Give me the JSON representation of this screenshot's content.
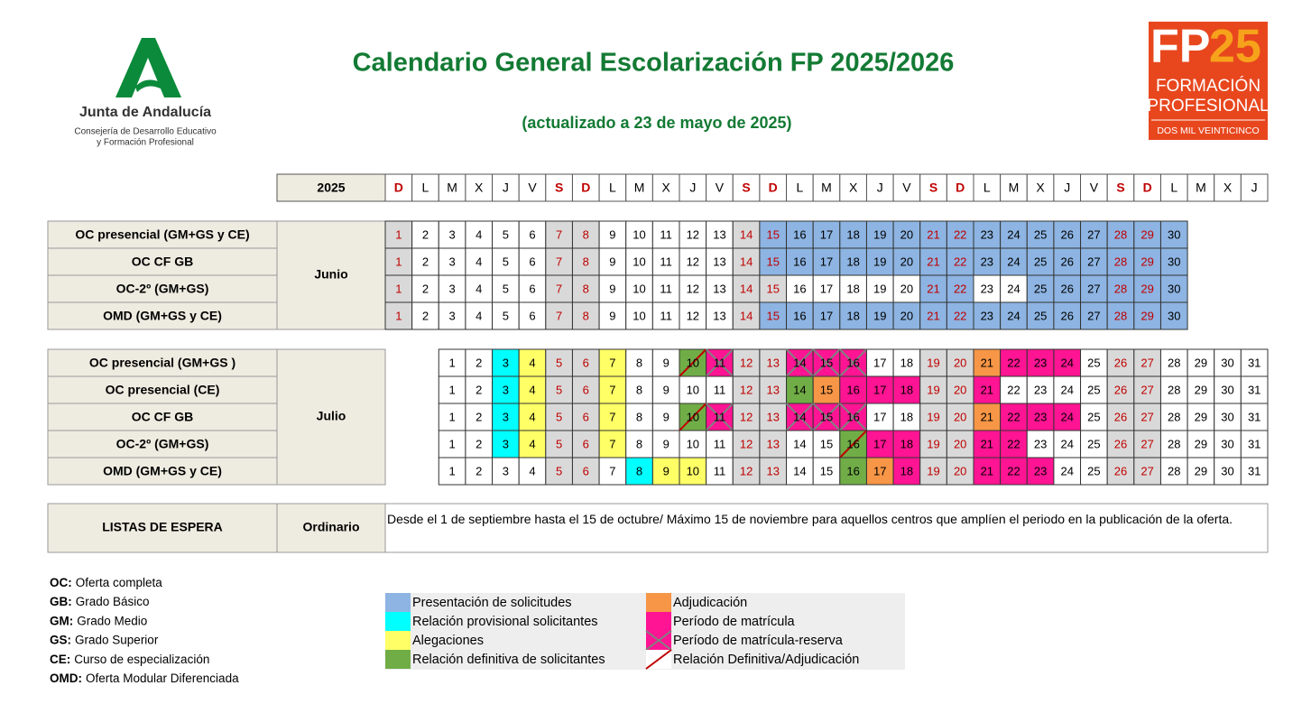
{
  "header": {
    "logo_left": {
      "name": "Junta de Andalucía",
      "line1": "Consejería de Desarrollo Educativo",
      "line2": "y Formación Profesional"
    },
    "title": "Calendario General Escolarización FP 2025/2026",
    "subtitle": "(actualizado a 23 de mayo de 2025)",
    "logo_right": {
      "fp": "FP",
      "num": "25",
      "line1": "FORMACIÓN",
      "line2": "PROFESIONAL",
      "line3": "DOS MIL VEINTICINCO"
    }
  },
  "calendar": {
    "year": "2025",
    "weekend_color": "#c00000",
    "weekend_fill": "#d9d9d9",
    "label_fill": "#eeece1",
    "weekdays": [
      {
        "label": "D",
        "weekend": true
      },
      "L",
      "M",
      "X",
      "J",
      "V",
      {
        "label": "S",
        "weekend": true
      },
      {
        "label": "D",
        "weekend": true
      },
      "L",
      "M",
      "X",
      "J",
      "V",
      {
        "label": "S",
        "weekend": true
      },
      {
        "label": "D",
        "weekend": true
      },
      "L",
      "M",
      "X",
      "J",
      "V",
      {
        "label": "S",
        "weekend": true
      },
      {
        "label": "D",
        "weekend": true
      },
      "L",
      "M",
      "X",
      "J",
      "V",
      {
        "label": "S",
        "weekend": true
      },
      {
        "label": "D",
        "weekend": true
      },
      "L",
      "M",
      "X",
      "J"
    ],
    "groups": [
      {
        "label": "Junio",
        "rows": [
          {
            "label": "OC presencial  (GM+GS y CE)",
            "days": [
              1,
              2,
              3,
              4,
              5,
              6,
              7,
              8,
              9,
              10,
              11,
              12,
              13,
              14,
              15,
              16,
              17,
              18,
              19,
              20,
              21,
              22,
              23,
              24,
              25,
              26,
              27,
              28,
              29,
              30
            ],
            "fills": [
              null,
              null,
              null,
              null,
              null,
              null,
              null,
              null,
              null,
              null,
              null,
              null,
              null,
              null,
              "#8db4e2",
              "#8db4e2",
              "#8db4e2",
              "#8db4e2",
              "#8db4e2",
              "#8db4e2",
              "#8db4e2",
              "#8db4e2",
              "#8db4e2",
              "#8db4e2",
              "#8db4e2",
              "#8db4e2",
              "#8db4e2",
              "#8db4e2",
              "#8db4e2",
              "#8db4e2"
            ]
          },
          {
            "label": "OC CF GB",
            "days": [
              1,
              2,
              3,
              4,
              5,
              6,
              7,
              8,
              9,
              10,
              11,
              12,
              13,
              14,
              15,
              16,
              17,
              18,
              19,
              20,
              21,
              22,
              23,
              24,
              25,
              26,
              27,
              28,
              29,
              30
            ],
            "fills": [
              null,
              null,
              null,
              null,
              null,
              null,
              null,
              null,
              null,
              null,
              null,
              null,
              null,
              null,
              "#8db4e2",
              "#8db4e2",
              "#8db4e2",
              "#8db4e2",
              "#8db4e2",
              "#8db4e2",
              "#8db4e2",
              "#8db4e2",
              "#8db4e2",
              "#8db4e2",
              "#8db4e2",
              "#8db4e2",
              "#8db4e2",
              "#8db4e2",
              "#8db4e2",
              "#8db4e2"
            ]
          },
          {
            "label": "OC-2º (GM+GS)",
            "days": [
              1,
              2,
              3,
              4,
              5,
              6,
              7,
              8,
              9,
              10,
              11,
              12,
              13,
              14,
              15,
              16,
              17,
              18,
              19,
              20,
              21,
              22,
              23,
              24,
              25,
              26,
              27,
              28,
              29,
              30
            ],
            "fills": [
              null,
              null,
              null,
              null,
              null,
              null,
              null,
              null,
              null,
              null,
              null,
              null,
              null,
              null,
              null,
              null,
              null,
              null,
              null,
              null,
              "#8db4e2",
              "#8db4e2",
              null,
              null,
              "#8db4e2",
              "#8db4e2",
              "#8db4e2",
              "#8db4e2",
              "#8db4e2",
              "#8db4e2"
            ]
          },
          {
            "label": "OMD (GM+GS y CE)",
            "days": [
              1,
              2,
              3,
              4,
              5,
              6,
              7,
              8,
              9,
              10,
              11,
              12,
              13,
              14,
              15,
              16,
              17,
              18,
              19,
              20,
              21,
              22,
              23,
              24,
              25,
              26,
              27,
              28,
              29,
              30
            ],
            "fills": [
              null,
              null,
              null,
              null,
              null,
              null,
              null,
              null,
              null,
              null,
              null,
              null,
              null,
              null,
              "#8db4e2",
              "#8db4e2",
              "#8db4e2",
              "#8db4e2",
              "#8db4e2",
              "#8db4e2",
              "#8db4e2",
              "#8db4e2",
              "#8db4e2",
              "#8db4e2",
              "#8db4e2",
              "#8db4e2",
              "#8db4e2",
              "#8db4e2",
              "#8db4e2",
              "#8db4e2"
            ]
          }
        ]
      },
      {
        "label": "Julio",
        "rows": [
          {
            "label": "OC presencial  (GM+GS )",
            "days": [
              null,
              null,
              1,
              2,
              3,
              4,
              5,
              6,
              7,
              8,
              9,
              10,
              11,
              12,
              13,
              14,
              15,
              16,
              17,
              18,
              19,
              20,
              21,
              22,
              23,
              24,
              25,
              26,
              27,
              28,
              29,
              30,
              31
            ],
            "fills": [
              null,
              null,
              null,
              null,
              "#00ffff",
              "#ffff66",
              null,
              null,
              "#ffff66",
              null,
              null,
              {
                "color": "#70ad47",
                "slash": "#c00000"
              },
              {
                "color": "#ff1493",
                "cross": "#808080"
              },
              null,
              null,
              {
                "color": "#ff1493",
                "cross": "#808080"
              },
              {
                "color": "#ff1493",
                "cross": "#808080"
              },
              {
                "color": "#ff1493",
                "cross": "#808080"
              },
              null,
              null,
              null,
              null,
              "#f79646",
              "#ff1493",
              "#ff1493",
              "#ff1493",
              null,
              null,
              null,
              null,
              null,
              null,
              null
            ]
          },
          {
            "label": "OC presencial (CE)",
            "days": [
              null,
              null,
              1,
              2,
              3,
              4,
              5,
              6,
              7,
              8,
              9,
              10,
              11,
              12,
              13,
              14,
              15,
              16,
              17,
              18,
              19,
              20,
              21,
              22,
              23,
              24,
              25,
              26,
              27,
              28,
              29,
              30,
              31
            ],
            "fills": [
              null,
              null,
              null,
              null,
              "#00ffff",
              "#ffff66",
              null,
              null,
              "#ffff66",
              null,
              null,
              null,
              null,
              null,
              null,
              "#70ad47",
              "#f79646",
              "#ff1493",
              "#ff1493",
              "#ff1493",
              null,
              null,
              "#ff1493",
              null,
              null,
              null,
              null,
              null,
              null,
              null,
              null,
              null,
              null
            ]
          },
          {
            "label": "OC CF GB",
            "days": [
              null,
              null,
              1,
              2,
              3,
              4,
              5,
              6,
              7,
              8,
              9,
              10,
              11,
              12,
              13,
              14,
              15,
              16,
              17,
              18,
              19,
              20,
              21,
              22,
              23,
              24,
              25,
              26,
              27,
              28,
              29,
              30,
              31
            ],
            "fills": [
              null,
              null,
              null,
              null,
              "#00ffff",
              "#ffff66",
              null,
              null,
              "#ffff66",
              null,
              null,
              {
                "color": "#70ad47",
                "slash": "#c00000"
              },
              {
                "color": "#ff1493",
                "cross": "#808080"
              },
              null,
              null,
              {
                "color": "#ff1493",
                "cross": "#808080"
              },
              {
                "color": "#ff1493",
                "cross": "#808080"
              },
              {
                "color": "#ff1493",
                "cross": "#808080"
              },
              null,
              null,
              null,
              null,
              "#f79646",
              "#ff1493",
              "#ff1493",
              "#ff1493",
              null,
              null,
              null,
              null,
              null,
              null,
              null
            ]
          },
          {
            "label": "OC-2º (GM+GS)",
            "days": [
              null,
              null,
              1,
              2,
              3,
              4,
              5,
              6,
              7,
              8,
              9,
              10,
              11,
              12,
              13,
              14,
              15,
              16,
              17,
              18,
              19,
              20,
              21,
              22,
              23,
              24,
              25,
              26,
              27,
              28,
              29,
              30,
              31
            ],
            "fills": [
              null,
              null,
              null,
              null,
              "#00ffff",
              "#ffff66",
              null,
              null,
              "#ffff66",
              null,
              null,
              null,
              null,
              null,
              null,
              null,
              null,
              {
                "color": "#70ad47",
                "slash": "#c00000"
              },
              "#ff1493",
              "#ff1493",
              null,
              null,
              "#ff1493",
              "#ff1493",
              null,
              null,
              null,
              null,
              null,
              null,
              null,
              null,
              null
            ]
          },
          {
            "label": "OMD (GM+GS y CE)",
            "days": [
              null,
              null,
              1,
              2,
              3,
              4,
              5,
              6,
              7,
              8,
              9,
              10,
              11,
              12,
              13,
              14,
              15,
              16,
              17,
              18,
              19,
              20,
              21,
              22,
              23,
              24,
              25,
              26,
              27,
              28,
              29,
              30,
              31
            ],
            "fills": [
              null,
              null,
              null,
              null,
              null,
              null,
              null,
              null,
              null,
              "#00ffff",
              "#ffff66",
              "#ffff66",
              null,
              null,
              null,
              null,
              null,
              "#70ad47",
              "#f79646",
              "#ff1493",
              null,
              null,
              "#ff1493",
              "#ff1493",
              "#ff1493",
              null,
              null,
              null,
              null,
              null,
              null,
              null,
              null
            ]
          }
        ]
      }
    ]
  },
  "waiting_list": {
    "label": "LISTAS DE ESPERA",
    "type": "Ordinario",
    "text": "Desde el 1 de septiembre hasta el 15 de octubre/ Máximo 15 de noviembre para aquellos centros que amplíen el periodo en la publicación de la oferta."
  },
  "abbreviations": [
    {
      "abbr": "OC:",
      "text": "Oferta completa"
    },
    {
      "abbr": "GB:",
      "text": "Grado Básico"
    },
    {
      "abbr": "GM:",
      "text": "Grado Medio"
    },
    {
      "abbr": "GS:",
      "text": "Grado Superior"
    },
    {
      "abbr": "CE:",
      "text": "Curso de especialización"
    },
    {
      "abbr": "OMD:",
      "text": "Oferta Modular Diferenciada"
    }
  ],
  "legend": [
    {
      "label": "Presentación de solicitudes",
      "color": "#8db4e2"
    },
    {
      "label": "Relación provisional solicitantes",
      "color": "#00ffff"
    },
    {
      "label": "Alegaciones",
      "color": "#ffff66"
    },
    {
      "label": "Relación definitiva de solicitantes",
      "color": "#70ad47"
    },
    {
      "label": "Adjudicación",
      "color": "#f79646"
    },
    {
      "label": "Período de matrícula",
      "color": "#ff1493"
    },
    {
      "label": "Período de matrícula-reserva",
      "color": "#ff1493",
      "cross": "#808080"
    },
    {
      "label": "Relación Definitiva/Adjudicación",
      "color": "#ffffff",
      "slash": "#c00000"
    }
  ]
}
